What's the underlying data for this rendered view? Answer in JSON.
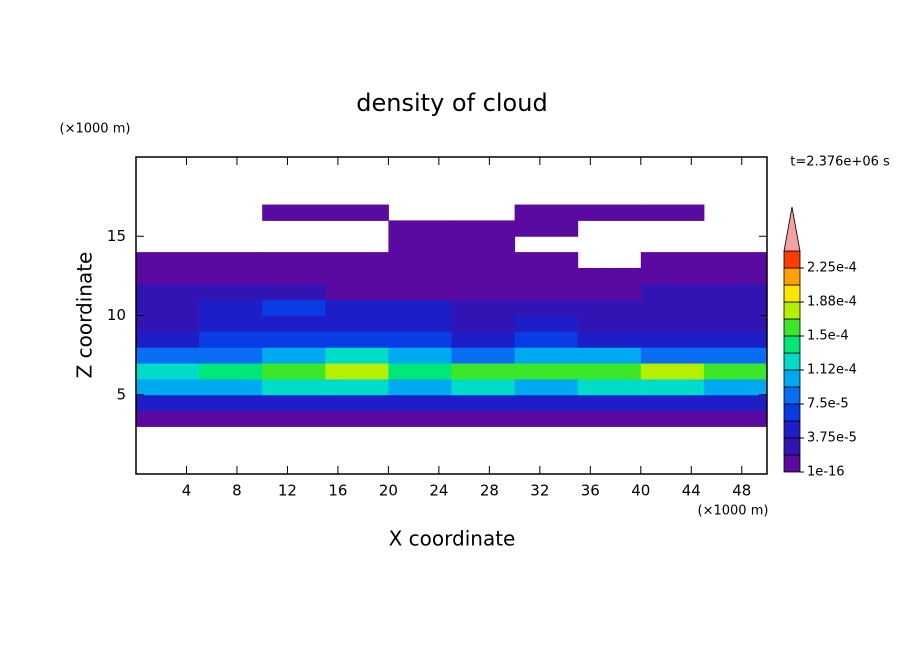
{
  "chart_data": {
    "type": "heatmap",
    "title": "density of cloud",
    "xlabel": "X coordinate",
    "ylabel": "Z coordinate",
    "x_unit": "(×1000 m)",
    "y_unit": "(×1000 m)",
    "annotation": "t=2.376e+06 s",
    "xlim": [
      0,
      50
    ],
    "ylim": [
      0,
      20
    ],
    "xticks": [
      4,
      8,
      12,
      16,
      20,
      24,
      28,
      32,
      36,
      40,
      44,
      48
    ],
    "yticks": [
      5,
      10,
      15
    ],
    "xbins": [
      0,
      5,
      10,
      15,
      20,
      25,
      30,
      35,
      40,
      45,
      50
    ],
    "ybins": [
      3,
      4,
      5,
      6,
      7,
      8,
      9,
      10,
      11,
      12,
      13,
      14,
      15,
      16,
      17
    ],
    "values": [
      [
        2e-06,
        2e-06,
        2e-06,
        2e-06,
        2e-06,
        2e-06,
        2e-06,
        2e-06,
        2e-06,
        2e-06
      ],
      [
        4e-05,
        4.5e-05,
        4e-05,
        4.5e-05,
        4e-05,
        4.5e-05,
        4e-05,
        4.5e-05,
        4e-05,
        4.5e-05
      ],
      [
        0.0001,
        0.00011,
        0.00012,
        0.000115,
        0.00011,
        0.00012,
        0.00011,
        0.00012,
        0.000115,
        0.00011
      ],
      [
        0.00013,
        0.000145,
        0.00016,
        0.000175,
        0.00014,
        0.00016,
        0.00015,
        0.000165,
        0.00017,
        0.00015
      ],
      [
        8e-05,
        9e-05,
        0.0001,
        0.00012,
        0.0001,
        9e-05,
        0.0001,
        0.00011,
        9e-05,
        8e-05
      ],
      [
        5e-05,
        6e-05,
        7e-05,
        6e-05,
        7e-05,
        5e-05,
        6e-05,
        5e-05,
        4e-05,
        5e-05
      ],
      [
        3e-05,
        4e-05,
        5e-05,
        4e-05,
        5e-05,
        3e-05,
        4e-05,
        3e-05,
        3e-05,
        3e-05
      ],
      [
        3e-05,
        5e-05,
        6e-05,
        4e-05,
        4e-05,
        3e-05,
        3e-05,
        2e-05,
        3e-05,
        3e-05
      ],
      [
        2e-05,
        2.5e-05,
        2e-05,
        1.5e-05,
        1e-05,
        1.5e-05,
        1e-05,
        1.5e-05,
        2e-05,
        2e-05
      ],
      [
        8e-06,
        8e-06,
        8e-06,
        8e-06,
        8e-06,
        8e-06,
        8e-06,
        8e-06,
        8e-06,
        8e-06
      ],
      [
        5e-06,
        5e-06,
        5e-06,
        5e-06,
        5e-06,
        5e-06,
        5e-06,
        null,
        5e-06,
        5e-06
      ],
      [
        null,
        null,
        null,
        null,
        5e-06,
        5e-06,
        null,
        null,
        null,
        null
      ],
      [
        null,
        null,
        null,
        null,
        5e-06,
        5e-06,
        5e-06,
        null,
        null,
        null
      ],
      [
        null,
        null,
        5e-06,
        5e-06,
        null,
        null,
        5e-06,
        5e-06,
        5e-06,
        null
      ]
    ],
    "levels": [
      1e-16,
      1.875e-05,
      3.75e-05,
      5.625e-05,
      7.5e-05,
      9.375e-05,
      0.0001125,
      0.00013125,
      0.00015,
      0.00016875,
      0.0001875,
      0.00020625,
      0.000225,
      0.00024375
    ],
    "colors": [
      "#5a0aa0",
      "#3214b4",
      "#1e1ec8",
      "#0a3ce6",
      "#0a6ef5",
      "#00aaf0",
      "#00dcc8",
      "#00e678",
      "#3ce628",
      "#b4f000",
      "#ffe600",
      "#ffa000",
      "#ff3c00"
    ],
    "overflow_color": "#f5a0a0",
    "colorbar_ticks": [
      {
        "value": 1e-16,
        "label": "1e-16"
      },
      {
        "value": 3.75e-05,
        "label": "3.75e-5"
      },
      {
        "value": 7.5e-05,
        "label": "7.5e-5"
      },
      {
        "value": 0.0001125,
        "label": "1.12e-4"
      },
      {
        "value": 0.00015,
        "label": "1.5e-4"
      },
      {
        "value": 0.0001875,
        "label": "1.88e-4"
      },
      {
        "value": 0.000225,
        "label": "2.25e-4"
      }
    ]
  }
}
